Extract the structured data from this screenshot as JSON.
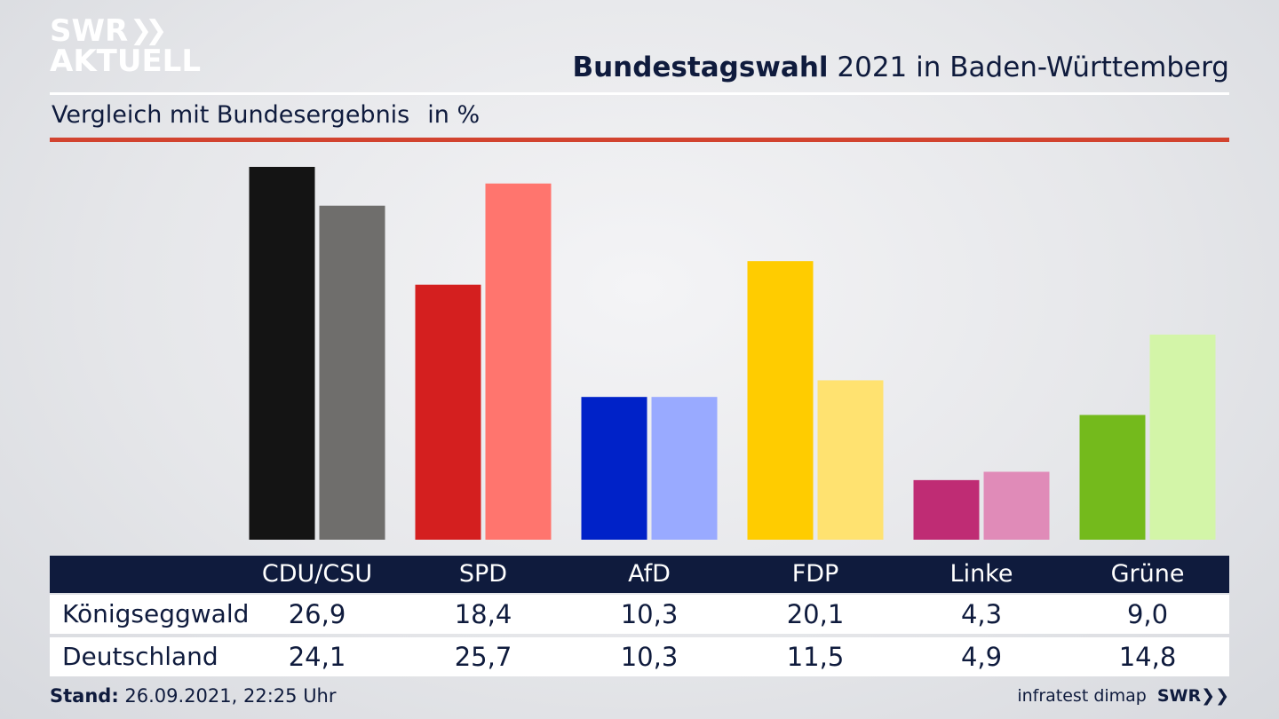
{
  "brand": {
    "logo_line1": "SWR",
    "logo_line2": "AKTUELL",
    "footer_logo": "SWR"
  },
  "header": {
    "title_bold": "Bundestagswahl",
    "title_rest": "2021 in Baden-Württemberg"
  },
  "subtitle": {
    "text": "Vergleich mit Bundesergebnis",
    "unit": "in %"
  },
  "footer": {
    "stand_label": "Stand:",
    "stand_value": "26.09.2021, 22:25 Uhr",
    "source": "infratest dimap"
  },
  "colors": {
    "accent_rule": "#d2432f",
    "table_header_bg": "#0f1b3d",
    "text": "#0f1b3d"
  },
  "chart_data": {
    "type": "bar",
    "categories": [
      "CDU/CSU",
      "SPD",
      "AfD",
      "FDP",
      "Linke",
      "Grüne"
    ],
    "series": [
      {
        "name": "Königseggwald",
        "values": [
          26.9,
          18.4,
          10.3,
          20.1,
          4.3,
          9.0
        ],
        "labels": [
          "26,9",
          "18,4",
          "10,3",
          "20,1",
          "4,3",
          "9,0"
        ],
        "colors": [
          "#141414",
          "#d41f1f",
          "#0022c8",
          "#ffcc00",
          "#bf2c74",
          "#74ba1c"
        ]
      },
      {
        "name": "Deutschland",
        "values": [
          24.1,
          25.7,
          10.3,
          11.5,
          4.9,
          14.8
        ],
        "labels": [
          "24,1",
          "25,7",
          "10,3",
          "11,5",
          "4,9",
          "14,8"
        ],
        "colors": [
          "#6f6e6c",
          "#ff756e",
          "#99aaff",
          "#ffe270",
          "#e08bb8",
          "#d3f5a8"
        ]
      }
    ],
    "ylim": [
      0,
      26.9
    ]
  }
}
